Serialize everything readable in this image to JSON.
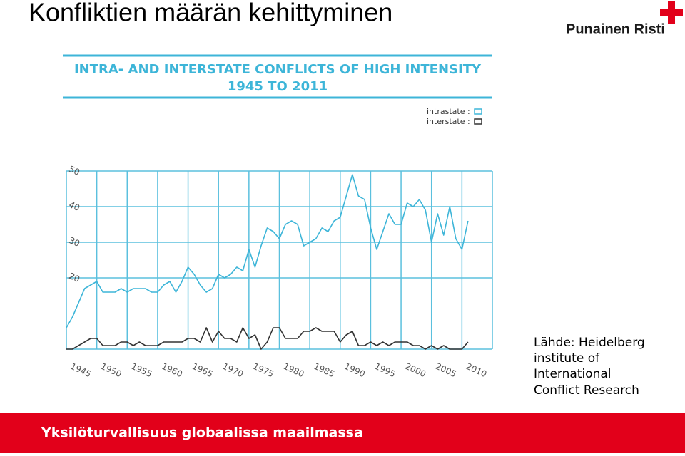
{
  "slide_title": "Konfliktien määrän kehittyminen",
  "logo": "Punainen Risti",
  "source": [
    "Lähde: Heidelberg",
    "institute of",
    "International",
    "Conflict Research"
  ],
  "footer": "Yksilöturvallisuus globaalissa maailmassa",
  "chart_data": {
    "type": "line",
    "title": "INTRA- AND INTERSTATE CONFLICTS OF HIGH INTENSITY",
    "subtitle": "1945 TO 2011",
    "x": [
      1945,
      1946,
      1947,
      1948,
      1949,
      1950,
      1951,
      1952,
      1953,
      1954,
      1955,
      1956,
      1957,
      1958,
      1959,
      1960,
      1961,
      1962,
      1963,
      1964,
      1965,
      1966,
      1967,
      1968,
      1969,
      1970,
      1971,
      1972,
      1973,
      1974,
      1975,
      1976,
      1977,
      1978,
      1979,
      1980,
      1981,
      1982,
      1983,
      1984,
      1985,
      1986,
      1987,
      1988,
      1989,
      1990,
      1991,
      1992,
      1993,
      1994,
      1995,
      1996,
      1997,
      1998,
      1999,
      2000,
      2001,
      2002,
      2003,
      2004,
      2005,
      2006,
      2007,
      2008,
      2009,
      2010,
      2011
    ],
    "series": [
      {
        "name": "intrastate :",
        "color": "#3db5d8",
        "values": [
          6,
          9,
          13,
          17,
          18,
          19,
          16,
          16,
          16,
          17,
          16,
          17,
          17,
          17,
          16,
          16,
          18,
          19,
          16,
          19,
          23,
          21,
          18,
          16,
          17,
          21,
          20,
          21,
          23,
          22,
          28,
          23,
          29,
          34,
          33,
          31,
          35,
          36,
          35,
          29,
          30,
          31,
          34,
          33,
          36,
          37,
          43,
          49,
          43,
          42,
          34,
          28,
          33,
          38,
          35,
          35,
          41,
          40,
          42,
          39,
          30,
          38,
          32,
          40,
          31,
          28,
          36
        ]
      },
      {
        "name": "interstate :",
        "color": "#333333",
        "values": [
          0,
          0,
          1,
          2,
          3,
          3,
          1,
          1,
          1,
          2,
          2,
          1,
          2,
          1,
          1,
          1,
          2,
          2,
          2,
          2,
          3,
          3,
          2,
          6,
          2,
          5,
          3,
          3,
          2,
          6,
          3,
          4,
          0,
          2,
          6,
          6,
          3,
          3,
          3,
          5,
          5,
          6,
          5,
          5,
          5,
          2,
          4,
          5,
          1,
          1,
          2,
          1,
          2,
          1,
          2,
          2,
          2,
          1,
          1,
          0,
          1,
          0,
          1,
          0,
          0,
          0,
          2
        ]
      }
    ],
    "xlim": [
      1945,
      2015
    ],
    "xticks": [
      1945,
      1950,
      1955,
      1960,
      1965,
      1970,
      1975,
      1980,
      1985,
      1990,
      1995,
      2000,
      2005,
      2010
    ],
    "ylim": [
      0,
      50
    ],
    "yticks": [
      20,
      30,
      40,
      50
    ],
    "grid": true,
    "grid_color": "#5bc0de"
  }
}
